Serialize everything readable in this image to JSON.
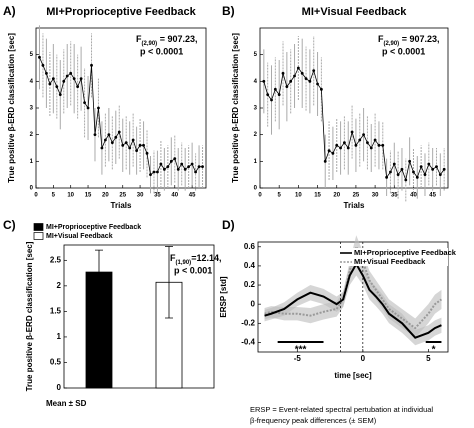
{
  "chart_data": [
    {
      "type": "line",
      "label": "A)",
      "title": "MI+Proprioceptive Feedback",
      "xlabel": "Trials",
      "ylabel": "True positive β-ERD classification [sec]",
      "annotation": {
        "text": "F",
        "sub": "(2,90)",
        "rest": " = 907.23,",
        "line2": "p < 0.0001"
      },
      "x": [
        1,
        2,
        3,
        4,
        5,
        6,
        7,
        8,
        9,
        10,
        11,
        12,
        13,
        14,
        15,
        16,
        17,
        18,
        19,
        20,
        21,
        22,
        23,
        24,
        25,
        26,
        27,
        28,
        29,
        30,
        31,
        32,
        33,
        34,
        35,
        36,
        37,
        38,
        39,
        40,
        41,
        42,
        43,
        44,
        45,
        46,
        47,
        48
      ],
      "series": [
        {
          "color": "#000",
          "values": [
            4.9,
            4.6,
            4.3,
            3.9,
            4.1,
            3.8,
            3.5,
            4.0,
            4.2,
            4.3,
            4.1,
            3.8,
            4.1,
            3.2,
            3.0,
            4.6,
            2.0,
            3.0,
            1.5,
            1.8,
            2.0,
            1.7,
            1.9,
            2.1,
            1.6,
            1.7,
            1.5,
            1.8,
            1.4,
            1.6,
            1.6,
            1.3,
            0.5,
            0.6,
            0.6,
            0.9,
            0.7,
            0.8,
            1.0,
            1.1,
            0.7,
            0.9,
            0.7,
            0.8,
            0.9,
            0.6,
            0.8,
            0.8
          ],
          "errors": [
            1.2,
            1.2,
            1.3,
            1.2,
            1.3,
            1.2,
            1.3,
            1.2,
            1.2,
            1.2,
            1.3,
            1.2,
            1.2,
            1.3,
            1.2,
            1.2,
            1.0,
            1.1,
            1.0,
            1.0,
            1.0,
            1.0,
            1.0,
            1.0,
            1.0,
            1.0,
            1.0,
            1.0,
            0.9,
            1.0,
            0.9,
            0.9,
            0.7,
            0.8,
            0.8,
            0.9,
            0.8,
            0.8,
            0.9,
            0.9,
            0.8,
            0.8,
            0.8,
            0.8,
            0.8,
            0.7,
            0.8,
            0.8
          ]
        }
      ],
      "xlim": [
        0,
        49
      ],
      "xticks": [
        0,
        5,
        10,
        15,
        20,
        25,
        30,
        35,
        40,
        45
      ],
      "ylim": [
        0,
        6
      ],
      "yticks": [
        0,
        1,
        2,
        3,
        4,
        5
      ]
    },
    {
      "type": "line",
      "label": "B)",
      "title": "MI+Visual Feedback",
      "xlabel": "Trials",
      "ylabel": "True positive β-ERD classification [sec]",
      "annotation": {
        "text": "F",
        "sub": "(2,90)",
        "rest": " = 907.23,",
        "line2": "p < 0.0001"
      },
      "x": [
        1,
        2,
        3,
        4,
        5,
        6,
        7,
        8,
        9,
        10,
        11,
        12,
        13,
        14,
        15,
        16,
        17,
        18,
        19,
        20,
        21,
        22,
        23,
        24,
        25,
        26,
        27,
        28,
        29,
        30,
        31,
        32,
        33,
        34,
        35,
        36,
        37,
        38,
        39,
        40,
        41,
        42,
        43,
        44,
        45,
        46,
        47,
        48
      ],
      "series": [
        {
          "color": "#000",
          "values": [
            4.0,
            3.5,
            3.3,
            3.7,
            3.5,
            4.3,
            3.8,
            4.0,
            4.2,
            4.5,
            4.3,
            4.1,
            4.0,
            4.4,
            3.9,
            3.7,
            1.0,
            1.4,
            1.3,
            1.6,
            1.5,
            1.7,
            1.5,
            2.1,
            1.6,
            1.8,
            2.0,
            1.7,
            1.5,
            1.8,
            1.6,
            1.6,
            0.4,
            0.6,
            0.9,
            0.5,
            0.7,
            0.3,
            1.0,
            0.6,
            0.4,
            0.8,
            0.5,
            0.9,
            0.7,
            0.8,
            0.5,
            0.7
          ],
          "errors": [
            1.2,
            1.2,
            1.3,
            1.2,
            1.3,
            1.2,
            1.3,
            1.2,
            1.2,
            1.2,
            1.3,
            1.2,
            1.2,
            1.3,
            1.2,
            1.2,
            1.0,
            1.1,
            1.0,
            1.0,
            1.0,
            1.0,
            1.0,
            1.0,
            1.0,
            1.0,
            1.0,
            1.0,
            0.9,
            1.0,
            0.9,
            0.9,
            0.7,
            0.8,
            0.8,
            0.9,
            0.8,
            0.8,
            0.9,
            0.9,
            0.8,
            0.8,
            0.8,
            0.8,
            0.8,
            0.7,
            0.8,
            0.8
          ]
        }
      ],
      "xlim": [
        0,
        49
      ],
      "xticks": [
        0,
        5,
        10,
        15,
        20,
        25,
        30,
        35,
        40,
        45
      ],
      "ylim": [
        0,
        6
      ],
      "yticks": [
        0,
        1,
        2,
        3,
        4,
        5
      ]
    },
    {
      "type": "bar",
      "label": "C)",
      "xlabel": "Mean ± SD",
      "ylabel": "True positive β-ERD classification [sec]",
      "annotation": {
        "text": "F",
        "sub": "(1,90)",
        "rest": "=12.14,",
        "line2": "p < 0.001"
      },
      "legend": "upper left",
      "series": [
        {
          "name": "MI+Proprioceptive Feedback",
          "color": "#000000",
          "values": [
            2.27
          ],
          "errors": [
            0.43
          ]
        },
        {
          "name": "MI+Visual Feedback",
          "color": "#ffffff",
          "values": [
            2.07
          ],
          "errors": [
            0.7
          ]
        }
      ],
      "ylim": [
        0,
        2.8
      ],
      "yticks": [
        0,
        0.5,
        1,
        1.5,
        2,
        2.5
      ]
    },
    {
      "type": "band",
      "label": "D)",
      "xlabel": "time [sec]",
      "ylabel": "ERSP [std]",
      "legend": "upper right",
      "x": [
        -7.5,
        -7,
        -6,
        -5,
        -4,
        -3,
        -2,
        -1.5,
        -1,
        -0.5,
        0,
        0.5,
        1,
        1.5,
        2,
        3,
        4,
        5,
        5.5,
        6
      ],
      "series": [
        {
          "name": "MI+Proprioceptive Feedback",
          "color": "#000000",
          "dash": false,
          "values": [
            -0.12,
            -0.1,
            -0.05,
            0.05,
            0.12,
            0.08,
            0.0,
            0.05,
            0.3,
            0.42,
            0.3,
            0.15,
            0.08,
            0.0,
            -0.1,
            -0.2,
            -0.35,
            -0.3,
            -0.25,
            -0.22
          ],
          "sem": [
            0.06,
            0.06,
            0.07,
            0.07,
            0.08,
            0.08,
            0.08,
            0.08,
            0.1,
            0.12,
            0.1,
            0.1,
            0.1,
            0.1,
            0.1,
            0.1,
            0.08,
            0.08,
            0.08,
            0.08
          ]
        },
        {
          "name": "MI+Visual Feedback",
          "color": "#999999",
          "dash": true,
          "values": [
            -0.1,
            -0.08,
            -0.1,
            -0.1,
            -0.12,
            -0.08,
            -0.05,
            0.05,
            0.35,
            0.6,
            0.45,
            0.25,
            0.15,
            0.05,
            -0.05,
            -0.15,
            -0.25,
            -0.1,
            0.0,
            0.05
          ],
          "sem": [
            0.06,
            0.06,
            0.07,
            0.07,
            0.08,
            0.08,
            0.08,
            0.08,
            0.1,
            0.12,
            0.1,
            0.1,
            0.1,
            0.1,
            0.1,
            0.1,
            0.1,
            0.1,
            0.1,
            0.1
          ]
        }
      ],
      "vlines": [
        -1.7,
        0
      ],
      "significance": [
        {
          "x": [
            -6.5,
            -3
          ],
          "label": "***"
        },
        {
          "x": [
            4.8,
            6
          ],
          "label": "*"
        }
      ],
      "note": [
        "ERSP = Event-related spectral pertubation at individual",
        "β-frequency peak differences  (± SEM)"
      ],
      "xlim": [
        -8,
        6.5
      ],
      "xticks": [
        -5,
        0,
        5
      ],
      "ylim": [
        -0.5,
        0.65
      ],
      "yticks": [
        -0.4,
        -0.2,
        0,
        0.2,
        0.4,
        0.6
      ]
    }
  ]
}
